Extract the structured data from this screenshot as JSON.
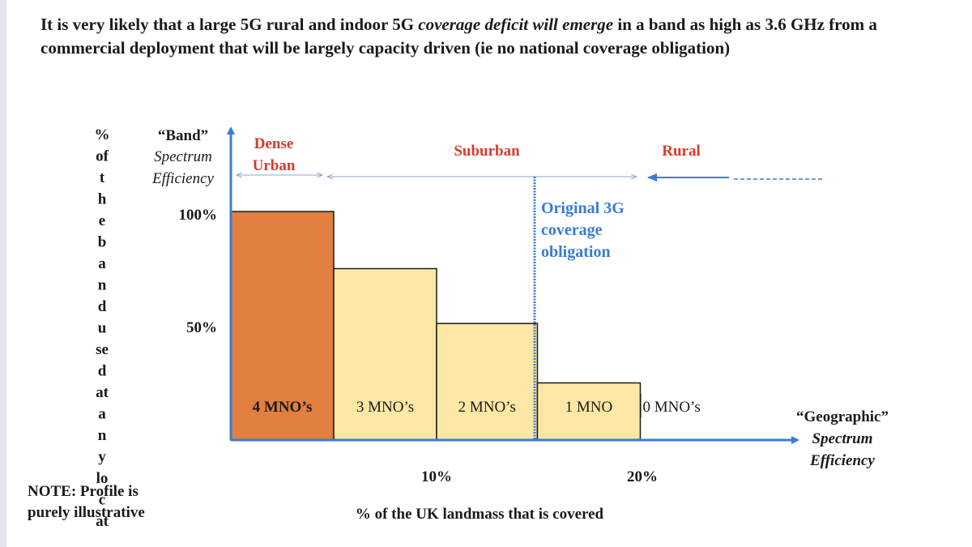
{
  "headline": {
    "part1": "It is very  likely that a large 5G rural and indoor 5G ",
    "italic": "coverage deficit will emerge",
    "part2": " in a band as high as 3.6 GHz from a commercial deployment that will be largely capacity driven (ie no national coverage obligation)"
  },
  "note": "NOTE: Profile is purely illustrative",
  "chart_data": {
    "type": "bar",
    "title": "",
    "ylabel_vertical": [
      "%",
      "of",
      "t",
      "h",
      "e",
      "b",
      "a",
      "n",
      "d",
      "u",
      "se",
      "d",
      "at",
      "a",
      "n",
      "y",
      "lo",
      "c",
      "at"
    ],
    "y_axis_title": [
      "“Band”",
      "Spectrum",
      "Efficiency"
    ],
    "x_axis_title": [
      "“Geographic”",
      "Spectrum",
      "Efficiency"
    ],
    "xlabel": "% of the UK landmass that is covered",
    "ylim": [
      0,
      100
    ],
    "y_ticks": [
      {
        "value": 100,
        "label": "100%"
      },
      {
        "value": 50,
        "label": "50%"
      }
    ],
    "x_ticks": [
      {
        "value": 10,
        "label": "10%"
      },
      {
        "value": 20,
        "label": "20%"
      }
    ],
    "xlim": [
      0,
      24
    ],
    "bars": [
      {
        "label": "4 MNO’s",
        "x0": 0,
        "x1": 5.0,
        "value": 100,
        "color": "#e07f3f",
        "bold": true
      },
      {
        "label": "3 MNO’s",
        "x0": 5.0,
        "x1": 10.0,
        "value": 75,
        "color": "#fce8a4",
        "bold": false
      },
      {
        "label": "2 MNO’s",
        "x0": 10.0,
        "x1": 14.9,
        "value": 51,
        "color": "#fce8a4",
        "bold": false
      },
      {
        "label": "1 MNO",
        "x0": 14.9,
        "x1": 19.9,
        "value": 25,
        "color": "#fce8a4",
        "bold": false
      },
      {
        "label": "0 MNO’s",
        "x0": 19.9,
        "x1": 23.5,
        "value": 0,
        "color": "none",
        "bold": false
      }
    ],
    "regions": [
      {
        "label": [
          "Dense",
          "Urban"
        ],
        "color": "#d93a2b"
      },
      {
        "label": [
          "Suburban"
        ],
        "color": "#d93a2b"
      },
      {
        "label": [
          "Rural"
        ],
        "color": "#d93a2b"
      }
    ],
    "annotation": {
      "label": [
        "Original 3G",
        "coverage",
        "obligation"
      ],
      "x": 14.7,
      "color": "#3a7bd5"
    },
    "colors": {
      "axis": "#3a7bd5",
      "dense_urban_bar": "#e07f3f",
      "other_bars": "#fce8a4",
      "region_text": "#d93a2b",
      "annotation": "#3a7bd5"
    }
  }
}
